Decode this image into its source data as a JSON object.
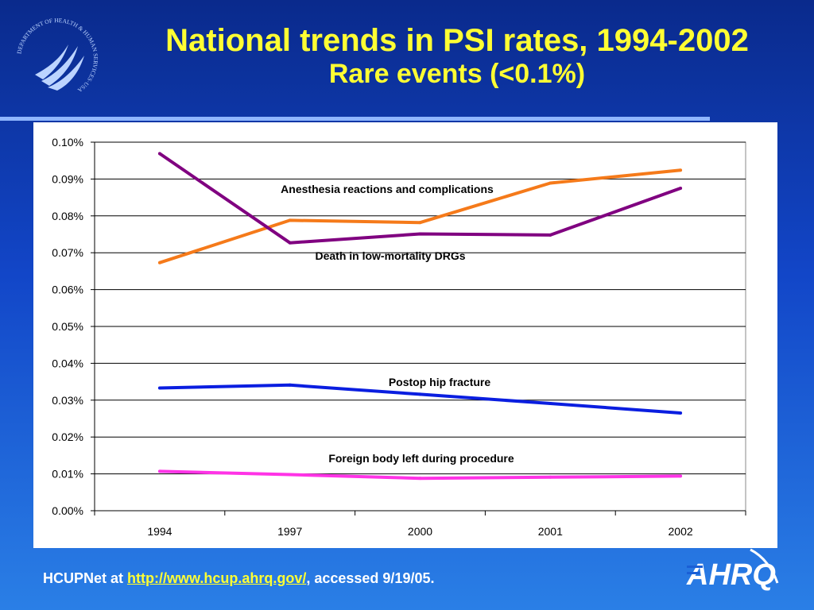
{
  "slide": {
    "title": "National trends in PSI rates, 1994-2002",
    "subtitle": "Rare events (<0.1%)"
  },
  "footer": {
    "prefix": "HCUPNet at ",
    "link_text": "http://www.hcup.ahrq.gov/",
    "suffix": ", accessed 9/19/05."
  },
  "logo": {
    "text": "AHRQ",
    "seal_text": "DEPARTMENT OF HEALTH & HUMAN SERVICES·USA"
  },
  "colors": {
    "title": "#ffff33",
    "orange": "#f57a1a",
    "purple": "#800080",
    "blue": "#0a1ee0",
    "magenta": "#ff33e6"
  },
  "chart_data": {
    "type": "line",
    "categories": [
      "1994",
      "1997",
      "2000",
      "2001",
      "2002"
    ],
    "yticks": [
      "0.00%",
      "0.01%",
      "0.02%",
      "0.03%",
      "0.04%",
      "0.05%",
      "0.06%",
      "0.07%",
      "0.08%",
      "0.09%",
      "0.10%"
    ],
    "ylim": [
      0,
      0.1
    ],
    "grid": true,
    "series": [
      {
        "name": "Anesthesia reactions and complications",
        "color": "#f57a1a",
        "values": [
          0.0673,
          0.0788,
          0.0782,
          0.0889,
          0.0924
        ]
      },
      {
        "name": "Death in low-mortality DRGs",
        "color": "#800080",
        "values": [
          0.0969,
          0.0727,
          0.0751,
          0.0748,
          0.0875
        ]
      },
      {
        "name": "Postop hip fracture",
        "color": "#0a1ee0",
        "values": [
          0.0333,
          0.0341,
          0.0316,
          0.0291,
          0.0265
        ]
      },
      {
        "name": "Foreign body left during procedure",
        "color": "#ff33e6",
        "values": [
          0.0107,
          0.0098,
          0.0088,
          0.0091,
          0.0094
        ]
      }
    ]
  }
}
